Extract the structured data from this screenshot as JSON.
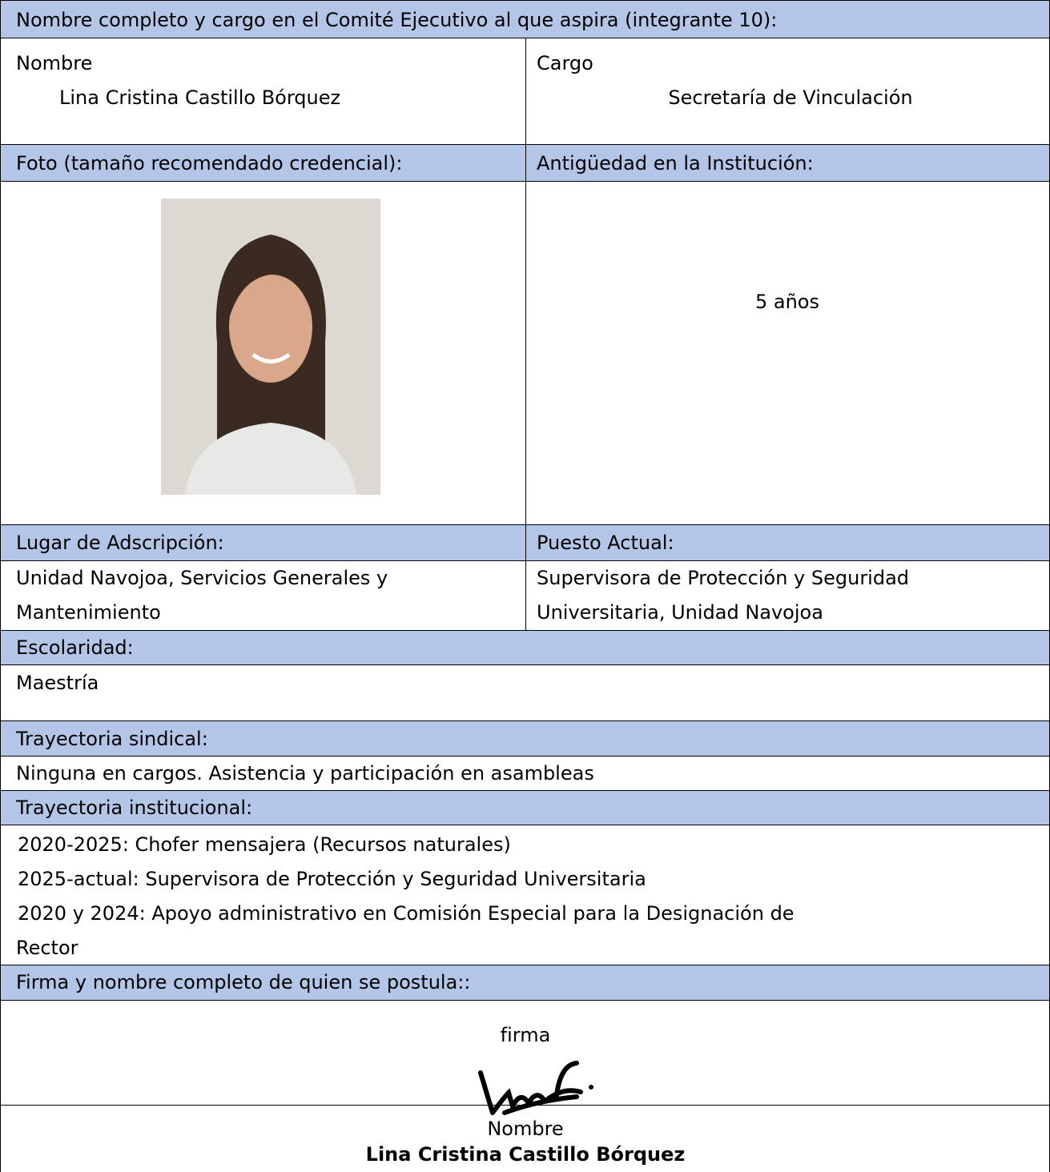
{
  "form": {
    "title": "Nombre completo y cargo en el Comité Ejecutivo al que aspira (integrante 10):",
    "name_label": "Nombre",
    "name_value": "Lina Cristina Castillo Bórquez",
    "position_label": "Cargo",
    "position_value": "Secretaría de Vinculación",
    "photo_label": "Foto (tamaño recomendado credencial):",
    "seniority_label": "Antigüedad en la Institución:",
    "seniority_value": "5 años",
    "place_label": "Lugar de Adscripción:",
    "place_value": [
      "Unidad Navojoa, Servicios Generales y",
      "Mantenimiento"
    ],
    "job_label": "Puesto Actual:",
    "job_value": [
      "Supervisora de Protección y Seguridad",
      "Universitaria, Unidad Navojoa"
    ],
    "schooling_label": "Escolaridad:",
    "schooling_value": "Maestría",
    "union_label": "Trayectoria sindical:",
    "union_value": "Ninguna en cargos. Asistencia y participación en asambleas",
    "institutional_label": "Trayectoria institucional:",
    "institutional_value": [
      "2020-2025: Chofer mensajera (Recursos naturales)",
      "2025-actual: Supervisora de Protección y Seguridad Universitaria",
      "2020 y 2024: Apoyo administrativo en Comisión Especial para la Designación de",
      "Rector"
    ],
    "signature_label": "Firma y nombre completo de quien se postula::",
    "signature_caption": "firma",
    "fullname_caption": "Nombre",
    "fullname_value": "Lina Cristina Castillo Bórquez"
  }
}
